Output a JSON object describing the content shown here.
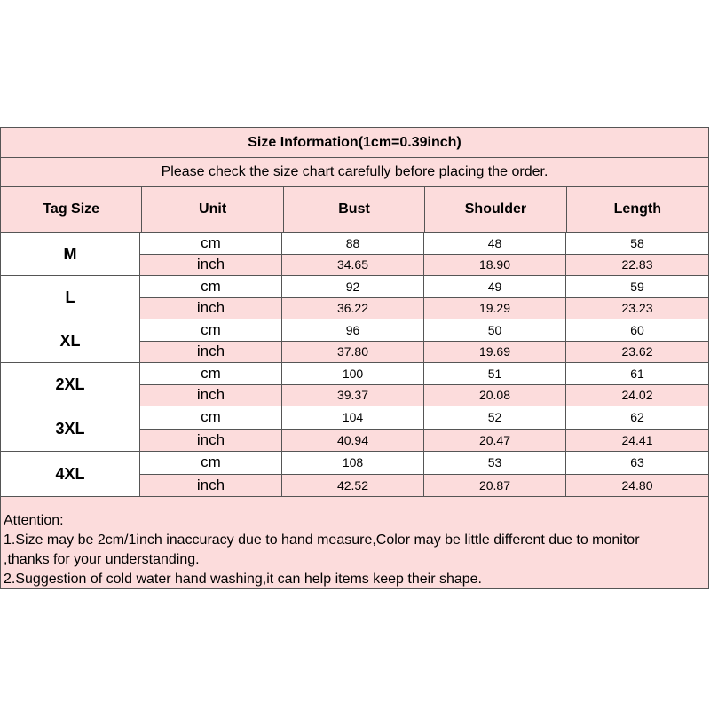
{
  "title": "Size Information(1cm=0.39inch)",
  "subtitle": "Please check the size chart carefully before placing the order.",
  "headers": [
    "Tag Size",
    "Unit",
    "Bust",
    "Shoulder",
    "Length"
  ],
  "rows": [
    {
      "size": "M",
      "cm": {
        "unit": "cm",
        "bust": "88",
        "shoulder": "48",
        "length": "58"
      },
      "inch": {
        "unit": "inch",
        "bust": "34.65",
        "shoulder": "18.90",
        "length": "22.83"
      }
    },
    {
      "size": "L",
      "cm": {
        "unit": "cm",
        "bust": "92",
        "shoulder": "49",
        "length": "59"
      },
      "inch": {
        "unit": "inch",
        "bust": "36.22",
        "shoulder": "19.29",
        "length": "23.23"
      }
    },
    {
      "size": "XL",
      "cm": {
        "unit": "cm",
        "bust": "96",
        "shoulder": "50",
        "length": "60"
      },
      "inch": {
        "unit": "inch",
        "bust": "37.80",
        "shoulder": "19.69",
        "length": "23.62"
      }
    },
    {
      "size": "2XL",
      "cm": {
        "unit": "cm",
        "bust": "100",
        "shoulder": "51",
        "length": "61"
      },
      "inch": {
        "unit": "inch",
        "bust": "39.37",
        "shoulder": "20.08",
        "length": "24.02"
      }
    },
    {
      "size": "3XL",
      "cm": {
        "unit": "cm",
        "bust": "104",
        "shoulder": "52",
        "length": "62"
      },
      "inch": {
        "unit": "inch",
        "bust": "40.94",
        "shoulder": "20.47",
        "length": "24.41"
      }
    },
    {
      "size": "4XL",
      "cm": {
        "unit": "cm",
        "bust": "108",
        "shoulder": "53",
        "length": "63"
      },
      "inch": {
        "unit": "inch",
        "bust": "42.52",
        "shoulder": "20.87",
        "length": "24.80"
      }
    }
  ],
  "attention": [
    "Attention:",
    "1.Size may be 2cm/1inch inaccuracy due to hand measure,Color may be little different due to monitor",
    ",thanks for your understanding.",
    "2.Suggestion of cold water hand washing,it can help items keep their shape."
  ],
  "colors": {
    "pink": "#fcdcdc",
    "border": "#555555"
  }
}
